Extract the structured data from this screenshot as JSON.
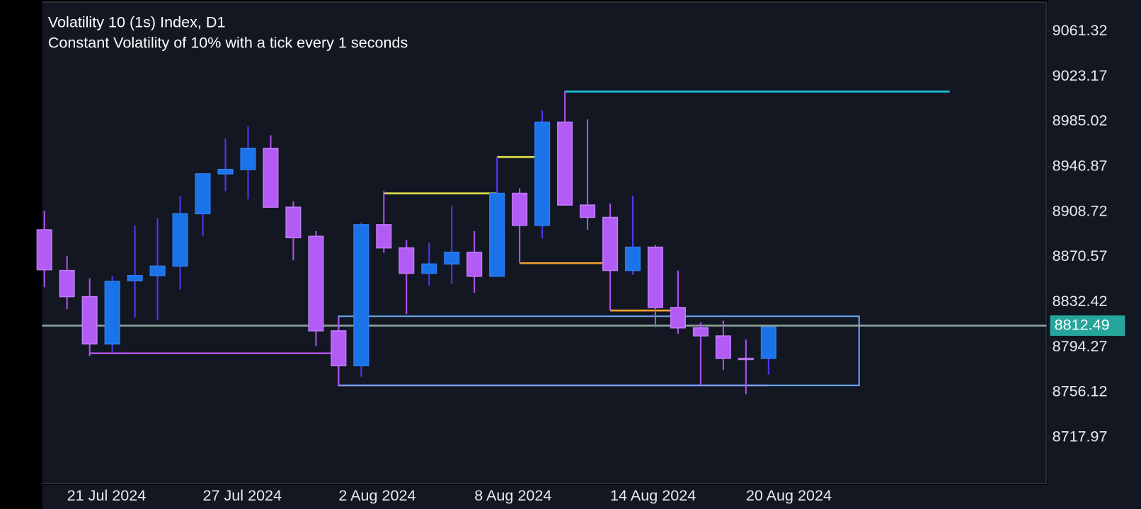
{
  "chart_data": {
    "type": "candlestick",
    "title": "Volatility 10 (1s) Index, D1",
    "subtitle": "Constant Volatility of 10% with a tick every 1 seconds",
    "categories": [
      null,
      "21 Jul 2024",
      null,
      null,
      null,
      null,
      null,
      "27 Jul 2024",
      null,
      null,
      null,
      null,
      null,
      "2 Aug 2024",
      null,
      null,
      null,
      null,
      null,
      "8 Aug 2024",
      null,
      null,
      null,
      null,
      null,
      "14 Aug 2024",
      null,
      null,
      null,
      null,
      null,
      "20 Aug 2024",
      null
    ],
    "open": [
      8893.5,
      8859.1,
      8837.0,
      8797.0,
      8850.5,
      8854.8,
      8862.8,
      8907.1,
      8940.8,
      8944.5,
      8962.4,
      8912.6,
      8888.0,
      8808.1,
      8778.6,
      8897.8,
      8878.2,
      8856.7,
      8864.6,
      8874.5,
      8854.2,
      8924.3,
      8897.2,
      8984.5,
      8914.4,
      8904.0,
      8859.1,
      8878.8,
      8827.8,
      8810.6,
      8803.8,
      8784.8,
      8784.8
    ],
    "high": [
      8909.5,
      8871.4,
      8852.4,
      8854.8,
      8897.2,
      8903.4,
      8921.8,
      8940.8,
      8971.0,
      8980.8,
      8973.4,
      8917.5,
      8892.3,
      8819.8,
      8899.7,
      8926.1,
      8884.9,
      8882.5,
      8913.8,
      8892.3,
      8955.0,
      8928.6,
      8994.3,
      9010.9,
      8987.0,
      8915.7,
      8922.4,
      8880.6,
      8859.1,
      8815.0,
      8816.7,
      8800.7,
      8811.2
    ],
    "low": [
      8845.0,
      8826.5,
      8786.6,
      8789.7,
      8819.2,
      8817.3,
      8843.1,
      8888.0,
      8926.1,
      8919.3,
      8912.6,
      8867.7,
      8795.2,
      8762.0,
      8769.4,
      8873.9,
      8822.2,
      8846.2,
      8848.0,
      8840.1,
      8854.2,
      8865.3,
      8886.2,
      8914.4,
      8893.5,
      8825.3,
      8855.4,
      8811.2,
      8805.6,
      8762.0,
      8774.9,
      8754.6,
      8771.2
    ],
    "close": [
      8859.7,
      8837.0,
      8797.0,
      8849.9,
      8854.8,
      8862.8,
      8907.1,
      8940.8,
      8944.5,
      8962.4,
      8912.6,
      8886.8,
      8808.1,
      8778.6,
      8897.8,
      8878.2,
      8856.7,
      8864.6,
      8874.5,
      8854.2,
      8924.3,
      8897.2,
      8984.5,
      8914.4,
      8904.0,
      8859.1,
      8878.8,
      8827.8,
      8810.6,
      8803.8,
      8784.8,
      8784.8,
      8811.2
    ],
    "up_color": "#1a73e8",
    "down_color": "#b35cf5",
    "ylim": [
      8679.0,
      9085.9
    ],
    "yticks": [
      9061.32,
      9023.17,
      8985.02,
      8946.87,
      8908.72,
      8870.57,
      8832.42,
      8794.27,
      8756.12,
      8717.97
    ],
    "grid": false,
    "last_price": 8812.49,
    "last_price_color": "#26a69a",
    "overlays": [
      {
        "kind": "line",
        "color": "#19c6d6",
        "x": [
          23,
          40
        ],
        "y": [
          9010.3,
          9010.3
        ]
      },
      {
        "kind": "line",
        "color": "#e8e84a",
        "x": [
          15,
          20
        ],
        "y": [
          8924.3,
          8924.3
        ]
      },
      {
        "kind": "line",
        "color": "#e8e84a",
        "x": [
          20,
          22
        ],
        "y": [
          8955.0,
          8955.0
        ]
      },
      {
        "kind": "line",
        "color": "#f0a030",
        "x": [
          21,
          25
        ],
        "y": [
          8865.3,
          8865.3
        ]
      },
      {
        "kind": "line",
        "color": "#f0a030",
        "x": [
          25,
          28
        ],
        "y": [
          8825.3,
          8825.3
        ]
      },
      {
        "kind": "line",
        "color": "#b055f0",
        "x": [
          2,
          13
        ],
        "y": [
          8789.1,
          8789.1
        ]
      },
      {
        "kind": "line",
        "color": "#b055f0",
        "x": [
          13,
          32
        ],
        "y": [
          8762.0,
          8762.0
        ]
      },
      {
        "kind": "box",
        "color": "#6aa8f0",
        "x": [
          13,
          36
        ],
        "y": [
          8820.4,
          8762.0
        ]
      }
    ]
  }
}
